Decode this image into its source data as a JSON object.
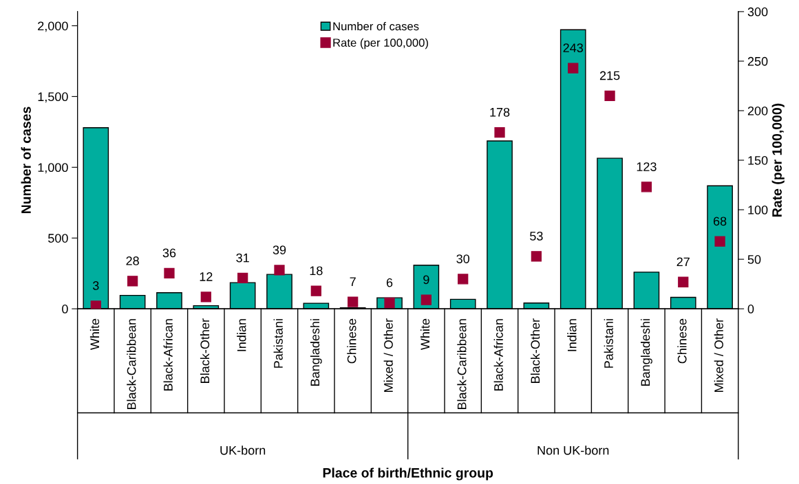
{
  "chart_data": {
    "type": "bar",
    "xlabel": "Place of birth/Ethnic group",
    "ylabel": "Number of cases",
    "y2label": "Rate (per 100,000)",
    "categories": [
      "White",
      "Black-Caribbean",
      "Black-African",
      "Black-Other",
      "Indian",
      "Pakistani",
      "Bangladeshi",
      "Chinese",
      "Mixed / Other",
      "White",
      "Black-Caribbean",
      "Black-African",
      "Black-Other",
      "Indian",
      "Pakistani",
      "Bangladeshi",
      "Chinese",
      "Mixed / Other"
    ],
    "series": [
      {
        "name": "Number of cases",
        "color": "#00ae9e",
        "values": [
          1280,
          95,
          114,
          22,
          185,
          243,
          39,
          7,
          78,
          308,
          67,
          1186,
          41,
          1972,
          1064,
          259,
          81,
          869
        ]
      },
      {
        "name": "Rate (per 100,000)",
        "type": "scatter",
        "axis": "y2",
        "color": "#9b0034",
        "marker": "square",
        "data_labels": true,
        "values": [
          3,
          28,
          36,
          12,
          31,
          39,
          18,
          7,
          6,
          9,
          30,
          178,
          53,
          243,
          215,
          123,
          27,
          68
        ]
      }
    ],
    "ylim": [
      0,
      2100
    ],
    "yticks": [
      {
        "value": 0,
        "label": "0"
      },
      {
        "value": 500,
        "label": "500"
      },
      {
        "value": 1000,
        "label": "1,000"
      },
      {
        "value": 1500,
        "label": "1,500"
      },
      {
        "value": 2000,
        "label": "2,000"
      }
    ],
    "y2lim": [
      0,
      300
    ],
    "y2ticks": [
      0,
      50,
      100,
      150,
      200,
      250,
      300
    ],
    "grid": false,
    "legend": "top",
    "annotations": [
      "UK-born",
      "Non UK-born"
    ]
  }
}
